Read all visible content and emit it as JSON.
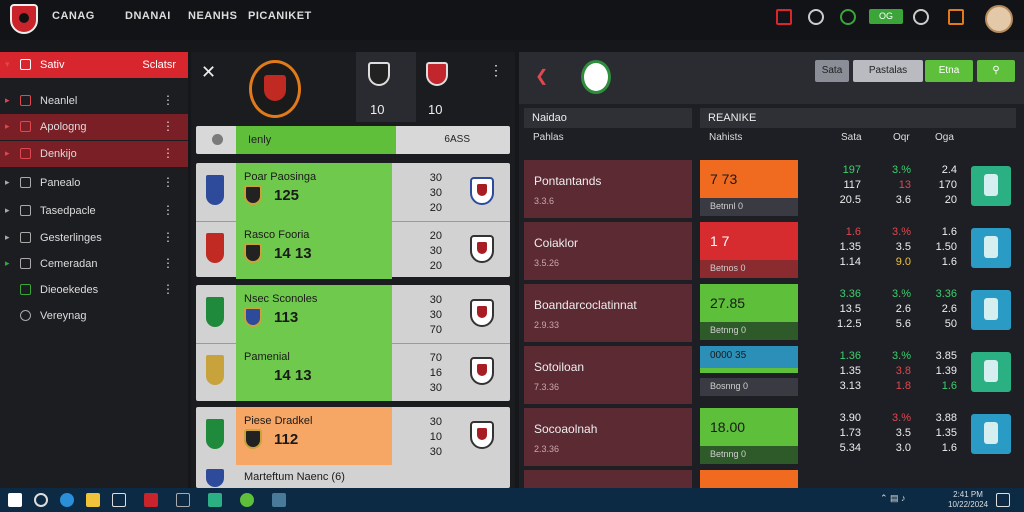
{
  "topnav": {
    "items": [
      "CANAG",
      "DNANAI",
      "NEANHS",
      "PICANIKET"
    ]
  },
  "topbar": {
    "badge": "OG"
  },
  "sidebar": {
    "items": [
      {
        "label": "Sativ",
        "right": "Sclatsr"
      },
      {
        "label": "Neanlel"
      },
      {
        "label": "Apologng"
      },
      {
        "label": "Denkijo"
      },
      {
        "label": "Panealo"
      },
      {
        "label": "Tasedpacle"
      },
      {
        "label": "Gesterlinges"
      },
      {
        "label": "Cemeradan"
      },
      {
        "label": "Dieoekedes"
      },
      {
        "label": "Vereynag"
      }
    ]
  },
  "match": {
    "header_nums": [
      "10",
      "10"
    ],
    "filter_label": "Ienly",
    "filter_right": "6ASS",
    "rows": [
      {
        "name": "Poar Paosinga",
        "score": "125",
        "odds": [
          "30",
          "30",
          "20"
        ],
        "flag": "#2d4b9a",
        "hl": "#6fc94c"
      },
      {
        "name": "Rasco Fooria",
        "score": "14  13",
        "odds": [
          "20",
          "30",
          "20"
        ],
        "flag": "#c02a22",
        "hl": "#6fc94c"
      },
      {
        "name": "Nsec Sconoles",
        "score": "113",
        "odds": [
          "30",
          "30",
          "70"
        ],
        "flag": "#1f8a3b",
        "hl": "#6fc94c"
      },
      {
        "name": "Pamenial",
        "score": "14  13",
        "odds": [
          "70",
          "16",
          "30"
        ],
        "flag": "#c8a23a",
        "hl": "#6fc94c"
      },
      {
        "name": "Piese Dradkel",
        "score": "112",
        "odds": [
          "30",
          "10",
          "30"
        ],
        "flag": "#1f8a3b",
        "hl": "#f7a765"
      },
      {
        "name": "Marteftum Naenc (6)",
        "score": "",
        "odds": [
          "",
          "",
          ""
        ],
        "flag": "#2d4b9a",
        "hl": "#d2d2d2"
      }
    ]
  },
  "panel": {
    "buttons": [
      "Sata",
      "Pastalas",
      "Etna"
    ],
    "col_left": "Naidao",
    "col_right": "REANIKE",
    "sub_left": "Pahlas",
    "sub_right": "Nahists",
    "stat_heads": [
      "Sata",
      "Oqr",
      "Oga"
    ],
    "rows": [
      {
        "title": "Pontantands",
        "sub": "3.3.6",
        "mk": "7 73",
        "mk_color": "#f06b1f",
        "mk_sub": "Betnnl 0",
        "a": [
          "197",
          "117",
          "20.5"
        ],
        "b": [
          "3.%",
          "13",
          "3.6"
        ],
        "c": [
          "2.4",
          "170",
          "20"
        ],
        "kit": "#2bb083"
      },
      {
        "title": "Coiaklor",
        "sub": "3.5.26",
        "mk": "1 7",
        "mk_color": "#d62b2f",
        "mk_sub": "Betnos 0",
        "a": [
          "1.6",
          "1.35",
          "1.14"
        ],
        "b": [
          "3.%",
          "3.5",
          "9.0"
        ],
        "c": [
          "1.6",
          "1.50",
          "1.6"
        ],
        "kit": "#2a9bc4"
      },
      {
        "title": "Boandarcoclatinnat",
        "sub": "2.9.33",
        "mk": "27.85",
        "mk_color": "#5dbf3a",
        "mk_sub": "Betnng 0",
        "a": [
          "3.36",
          "13.5",
          "1.2.5"
        ],
        "b": [
          "3.%",
          "2.6",
          "5.6"
        ],
        "c": [
          "3.36",
          "2.6",
          "50"
        ],
        "kit": "#2a9bc4"
      },
      {
        "title": "Sotoiloan",
        "sub": "7.3.36",
        "mk": "0000 35",
        "mk_color": "#2c8fb8",
        "mk_sub": "Bosnng 0",
        "a": [
          "1.36",
          "1.35",
          "3.13"
        ],
        "b": [
          "3.%",
          "3.8",
          "1.8"
        ],
        "c": [
          "3.85",
          "1.39",
          "1.6"
        ],
        "kit": "#2bb083"
      },
      {
        "title": "Socoaolnah",
        "sub": "2.3.36",
        "mk": "18.00",
        "mk_color": "#5dbf3a",
        "mk_sub": "Betnng 0",
        "a": [
          "3.90",
          "1.73",
          "5.34"
        ],
        "b": [
          "3.%",
          "3.5",
          "3.0"
        ],
        "c": [
          "3.88",
          "1.35",
          "1.6"
        ],
        "kit": "#2a9bc4"
      }
    ]
  },
  "taskbar": {
    "time": "2:41 PM",
    "date": "10/22/2024"
  }
}
